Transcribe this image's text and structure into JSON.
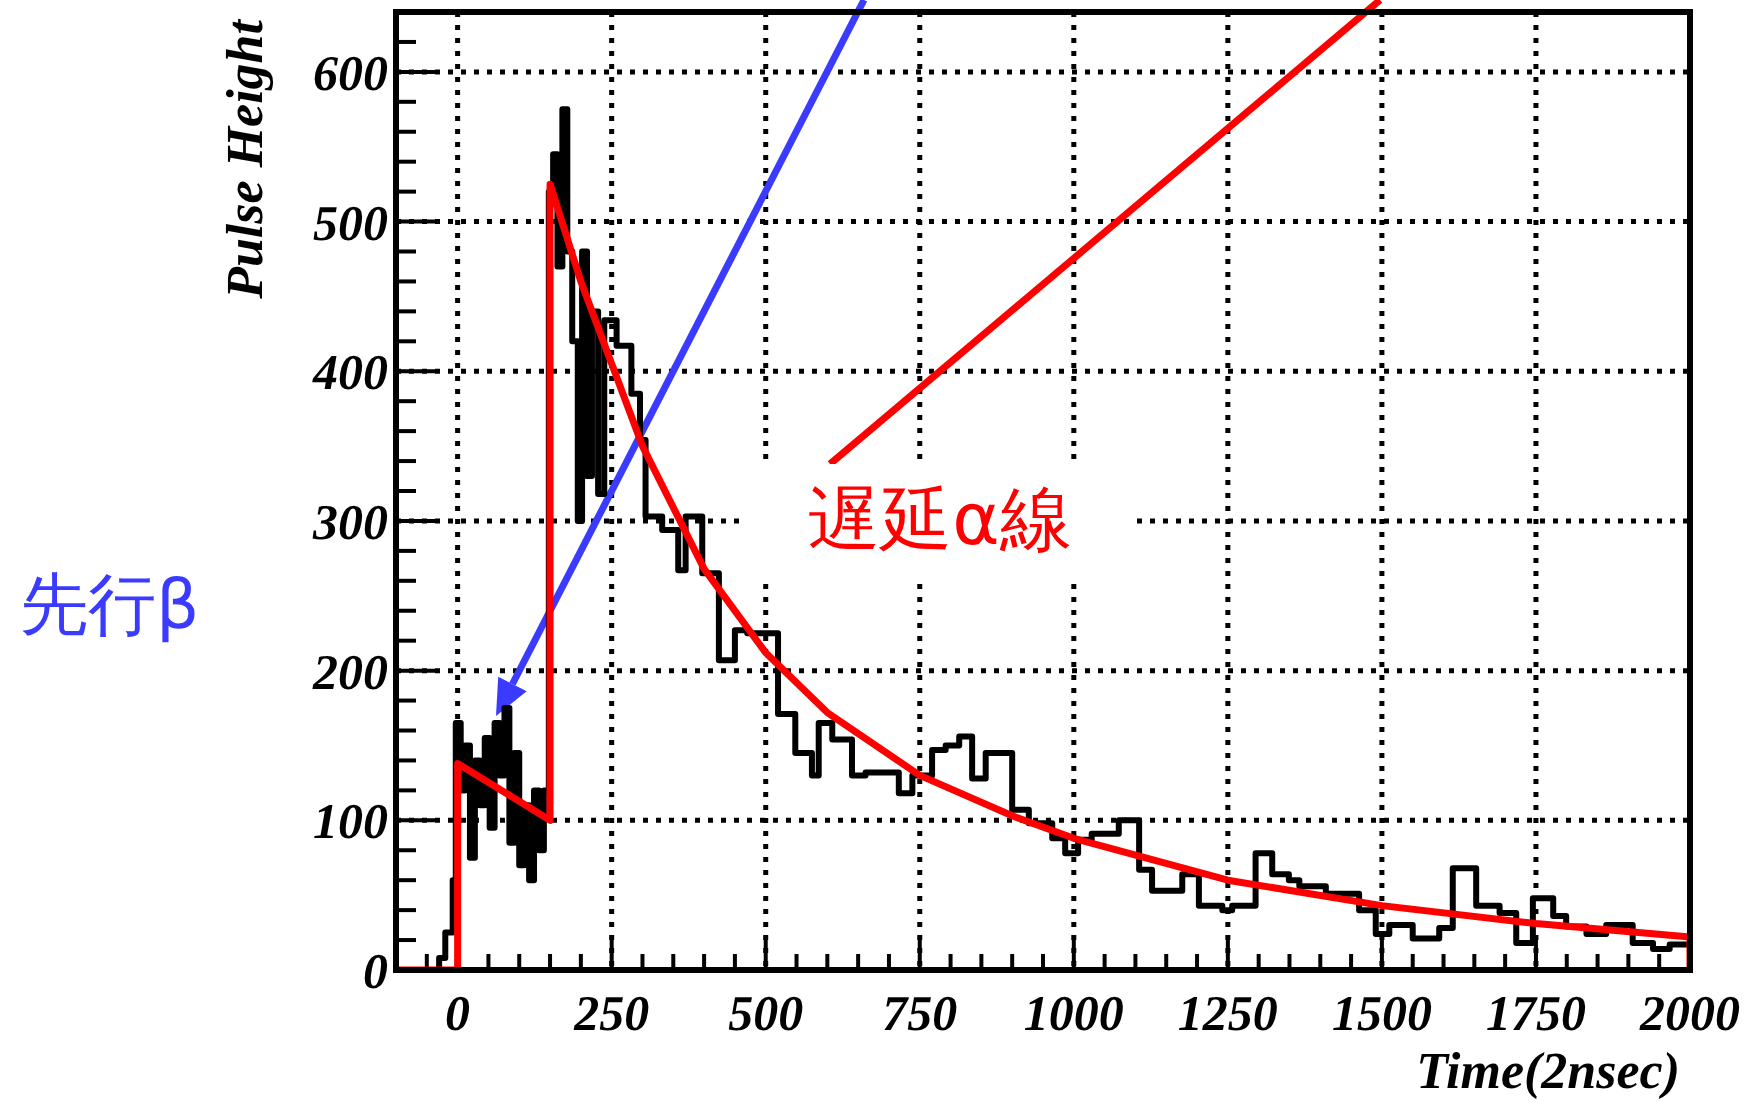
{
  "chart_data": {
    "type": "step",
    "xlabel": "Time(2nsec)",
    "ylabel": "Pulse Height",
    "xlim": [
      -100,
      2000
    ],
    "ylim": [
      0,
      640
    ],
    "xticks": [
      0,
      250,
      500,
      750,
      1000,
      1250,
      1500,
      1750,
      2000
    ],
    "yticks": [
      0,
      100,
      200,
      300,
      400,
      500,
      600
    ],
    "grid": true,
    "annotations": [
      "先行β",
      "遅延α線"
    ],
    "series": [
      {
        "color": "#000000",
        "x": [
          -100,
          -30,
          -20,
          -8,
          -3,
          5,
          12,
          20,
          28,
          36,
          44,
          52,
          60,
          68,
          76,
          84,
          92,
          100,
          108,
          116,
          124,
          132,
          140,
          148,
          155,
          162,
          170,
          178,
          186,
          195,
          202,
          210,
          218,
          228,
          238,
          258,
          282,
          296,
          305,
          332,
          358,
          370,
          397,
          424,
          450,
          470,
          520,
          548,
          575,
          586,
          608,
          640,
          662,
          716,
          738,
          770,
          792,
          814,
          835,
          857,
          900,
          927,
          965,
          986,
          1007,
          1029,
          1073,
          1106,
          1127,
          1176,
          1203,
          1241,
          1257,
          1295,
          1322,
          1349,
          1366,
          1409,
          1463,
          1490,
          1512,
          1550,
          1593,
          1615,
          1653,
          1691,
          1718,
          1745,
          1778,
          1799,
          1832,
          1864,
          1907,
          1940,
          1967,
          2000
        ],
        "values": [
          0,
          8,
          25,
          60,
          165,
          120,
          150,
          75,
          140,
          110,
          155,
          95,
          165,
          130,
          175,
          85,
          145,
          70,
          110,
          60,
          120,
          80,
          120,
          520,
          545,
          470,
          575,
          480,
          420,
          300,
          480,
          330,
          440,
          318,
          434,
          417,
          385,
          354,
          303,
          294,
          267,
          303,
          265,
          207,
          227,
          225,
          171,
          145,
          130,
          165,
          154,
          130,
          132,
          118,
          130,
          147,
          150,
          156,
          128,
          145,
          107,
          98,
          88,
          78,
          87,
          91,
          100,
          67,
          53,
          64,
          43,
          40,
          43,
          78,
          64,
          60,
          56,
          51,
          40,
          24,
          30,
          21,
          28,
          68,
          43,
          38,
          18,
          48,
          36,
          29,
          24,
          30,
          18,
          14,
          17,
          17
        ]
      },
      {
        "type": "line",
        "color": "#ff0000",
        "x": [
          -100,
          0,
          0,
          150,
          150,
          200,
          250,
          300,
          400,
          500,
          600,
          750,
          900,
          1000,
          1250,
          1500,
          1750,
          2000,
          2000
        ],
        "values": [
          0,
          0,
          138,
          100,
          525,
          460,
          405,
          350,
          268,
          212,
          172,
          130,
          103,
          88,
          60,
          43,
          31,
          22,
          0
        ]
      }
    ]
  }
}
